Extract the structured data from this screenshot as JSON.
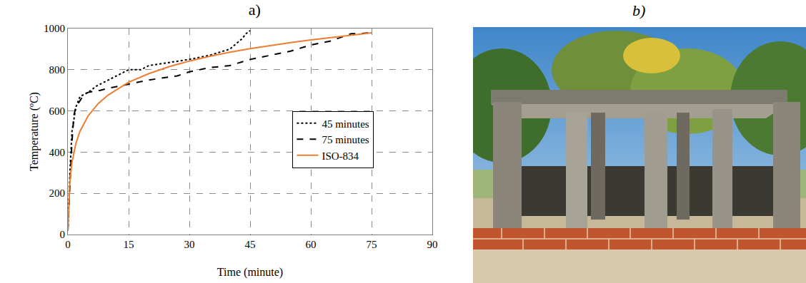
{
  "chart_data": {
    "type": "line",
    "title": "a)",
    "x_label": "Time (minute)",
    "y_label": "Temperature (ºC)",
    "xlim": [
      0,
      90
    ],
    "xticks": [
      0,
      15,
      30,
      45,
      60,
      75,
      90
    ],
    "ylim": [
      0,
      1000
    ],
    "yticks": [
      0,
      200,
      400,
      600,
      800,
      1000
    ],
    "grid": true,
    "legend": "right",
    "series": [
      {
        "name": "45 minutes",
        "color": "#000000",
        "line_style": "dotted",
        "x": [
          0,
          0.5,
          1,
          2,
          3,
          5,
          7,
          10,
          12,
          15,
          18,
          20,
          25,
          30,
          35,
          40,
          43,
          44,
          45
        ],
        "values": [
          20,
          300,
          500,
          620,
          670,
          690,
          720,
          750,
          770,
          800,
          800,
          820,
          835,
          850,
          870,
          900,
          950,
          975,
          990
        ]
      },
      {
        "name": "75 minutes",
        "color": "#000000",
        "line_style": "dashed",
        "x": [
          0,
          1,
          1.5,
          2,
          3,
          4,
          5,
          8,
          10,
          15,
          20,
          25,
          27,
          30,
          35,
          40,
          45,
          50,
          55,
          60,
          65,
          70,
          72,
          75
        ],
        "values": [
          20,
          450,
          580,
          620,
          650,
          680,
          690,
          700,
          710,
          730,
          750,
          765,
          770,
          790,
          810,
          820,
          850,
          870,
          890,
          920,
          940,
          975,
          975,
          980
        ]
      },
      {
        "name": "ISO-834",
        "color": "#ed7d31",
        "line_style": "solid",
        "x": [
          0,
          0.5,
          1,
          2,
          3,
          5,
          7.5,
          10,
          15,
          20,
          25,
          30,
          35,
          40,
          45,
          50,
          55,
          60,
          65,
          70,
          75
        ],
        "values": [
          20,
          261,
          349,
          444,
          502,
          576,
          636,
          678,
          739,
          781,
          815,
          842,
          865,
          885,
          902,
          918,
          932,
          945,
          957,
          968,
          979
        ]
      }
    ]
  },
  "photo": {
    "label": "b)"
  }
}
